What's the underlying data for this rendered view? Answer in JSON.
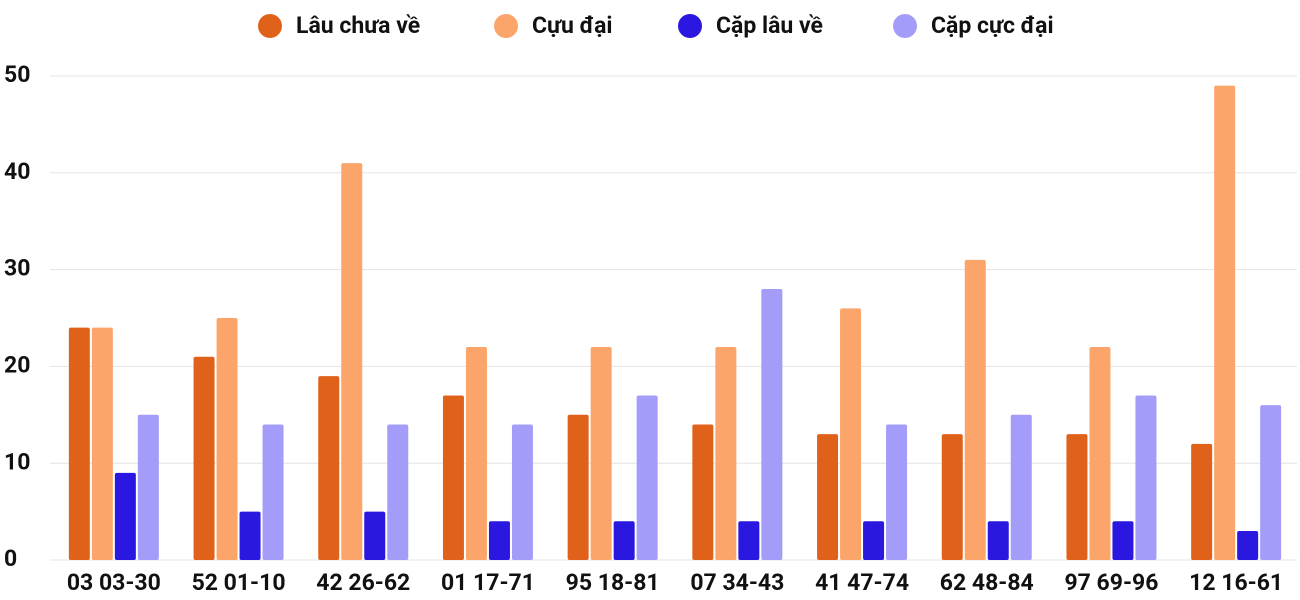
{
  "chart_data": {
    "type": "bar",
    "categories": [
      "03 03-30",
      "52 01-10",
      "42 26-62",
      "01 17-71",
      "95 18-81",
      "07 34-43",
      "41 47-74",
      "62 48-84",
      "97 69-96",
      "12 16-61"
    ],
    "series": [
      {
        "name": "Lâu chưa về",
        "color": "#e0621a",
        "values": [
          24,
          21,
          19,
          17,
          15,
          14,
          13,
          13,
          13,
          12
        ]
      },
      {
        "name": "Cựu đại",
        "color": "#fca56b",
        "values": [
          24,
          25,
          41,
          22,
          22,
          22,
          26,
          31,
          22,
          49
        ]
      },
      {
        "name": "Cặp lâu về",
        "color": "#2a17e0",
        "values": [
          9,
          5,
          5,
          4,
          4,
          4,
          4,
          4,
          4,
          3
        ]
      },
      {
        "name": "Cặp cực đại",
        "color": "#a39cf8",
        "values": [
          15,
          14,
          14,
          14,
          17,
          28,
          14,
          15,
          17,
          16
        ]
      }
    ],
    "ylim": [
      0,
      50
    ],
    "yticks": [
      0,
      10,
      20,
      30,
      40,
      50
    ],
    "grid": true,
    "legend": "top"
  }
}
